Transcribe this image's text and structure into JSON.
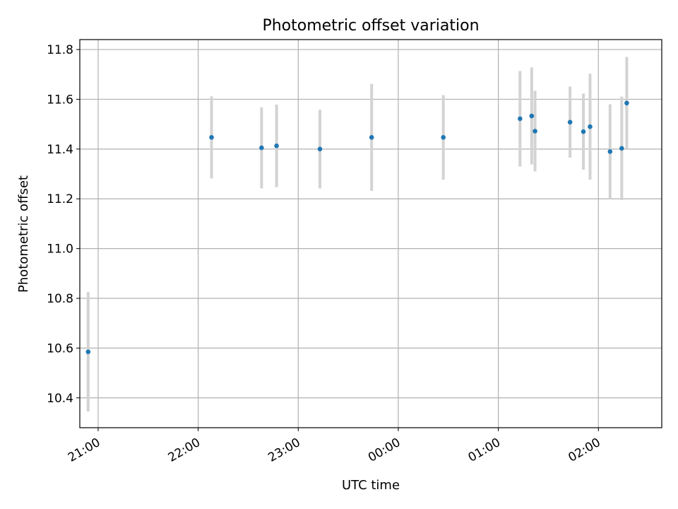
{
  "chart_data": {
    "type": "scatter",
    "title": "Photometric offset variation",
    "xlabel": "UTC time",
    "ylabel": "Photometric offset",
    "x_ticks": [
      "21:00",
      "22:00",
      "23:00",
      "00:00",
      "01:00",
      "02:00"
    ],
    "y_ticks": [
      "10.4",
      "10.6",
      "10.8",
      "11.0",
      "11.2",
      "11.4",
      "11.6",
      "11.8"
    ],
    "xlim": [
      "20:49",
      "02:38"
    ],
    "ylim": [
      10.28,
      11.84
    ],
    "grid": true,
    "colors": {
      "point": "#1f77b4",
      "errorbar": "#d3d3d3",
      "grid": "#b0b0b0"
    },
    "points": [
      {
        "x": "20:54",
        "y": 10.585,
        "yerr": 0.24
      },
      {
        "x": "22:08",
        "y": 11.447,
        "yerr": 0.165
      },
      {
        "x": "22:38",
        "y": 11.405,
        "yerr": 0.163
      },
      {
        "x": "22:47",
        "y": 11.413,
        "yerr": 0.166
      },
      {
        "x": "23:13",
        "y": 11.4,
        "yerr": 0.158
      },
      {
        "x": "23:44",
        "y": 11.447,
        "yerr": 0.215
      },
      {
        "x": "00:27",
        "y": 11.447,
        "yerr": 0.17
      },
      {
        "x": "01:13",
        "y": 11.522,
        "yerr": 0.192
      },
      {
        "x": "01:20",
        "y": 11.533,
        "yerr": 0.195
      },
      {
        "x": "01:22",
        "y": 11.472,
        "yerr": 0.162
      },
      {
        "x": "01:43",
        "y": 11.508,
        "yerr": 0.143
      },
      {
        "x": "01:51",
        "y": 11.47,
        "yerr": 0.153
      },
      {
        "x": "01:55",
        "y": 11.49,
        "yerr": 0.213
      },
      {
        "x": "02:07",
        "y": 11.39,
        "yerr": 0.19
      },
      {
        "x": "02:14",
        "y": 11.403,
        "yerr": 0.208
      },
      {
        "x": "02:17",
        "y": 11.585,
        "yerr": 0.185
      }
    ]
  }
}
